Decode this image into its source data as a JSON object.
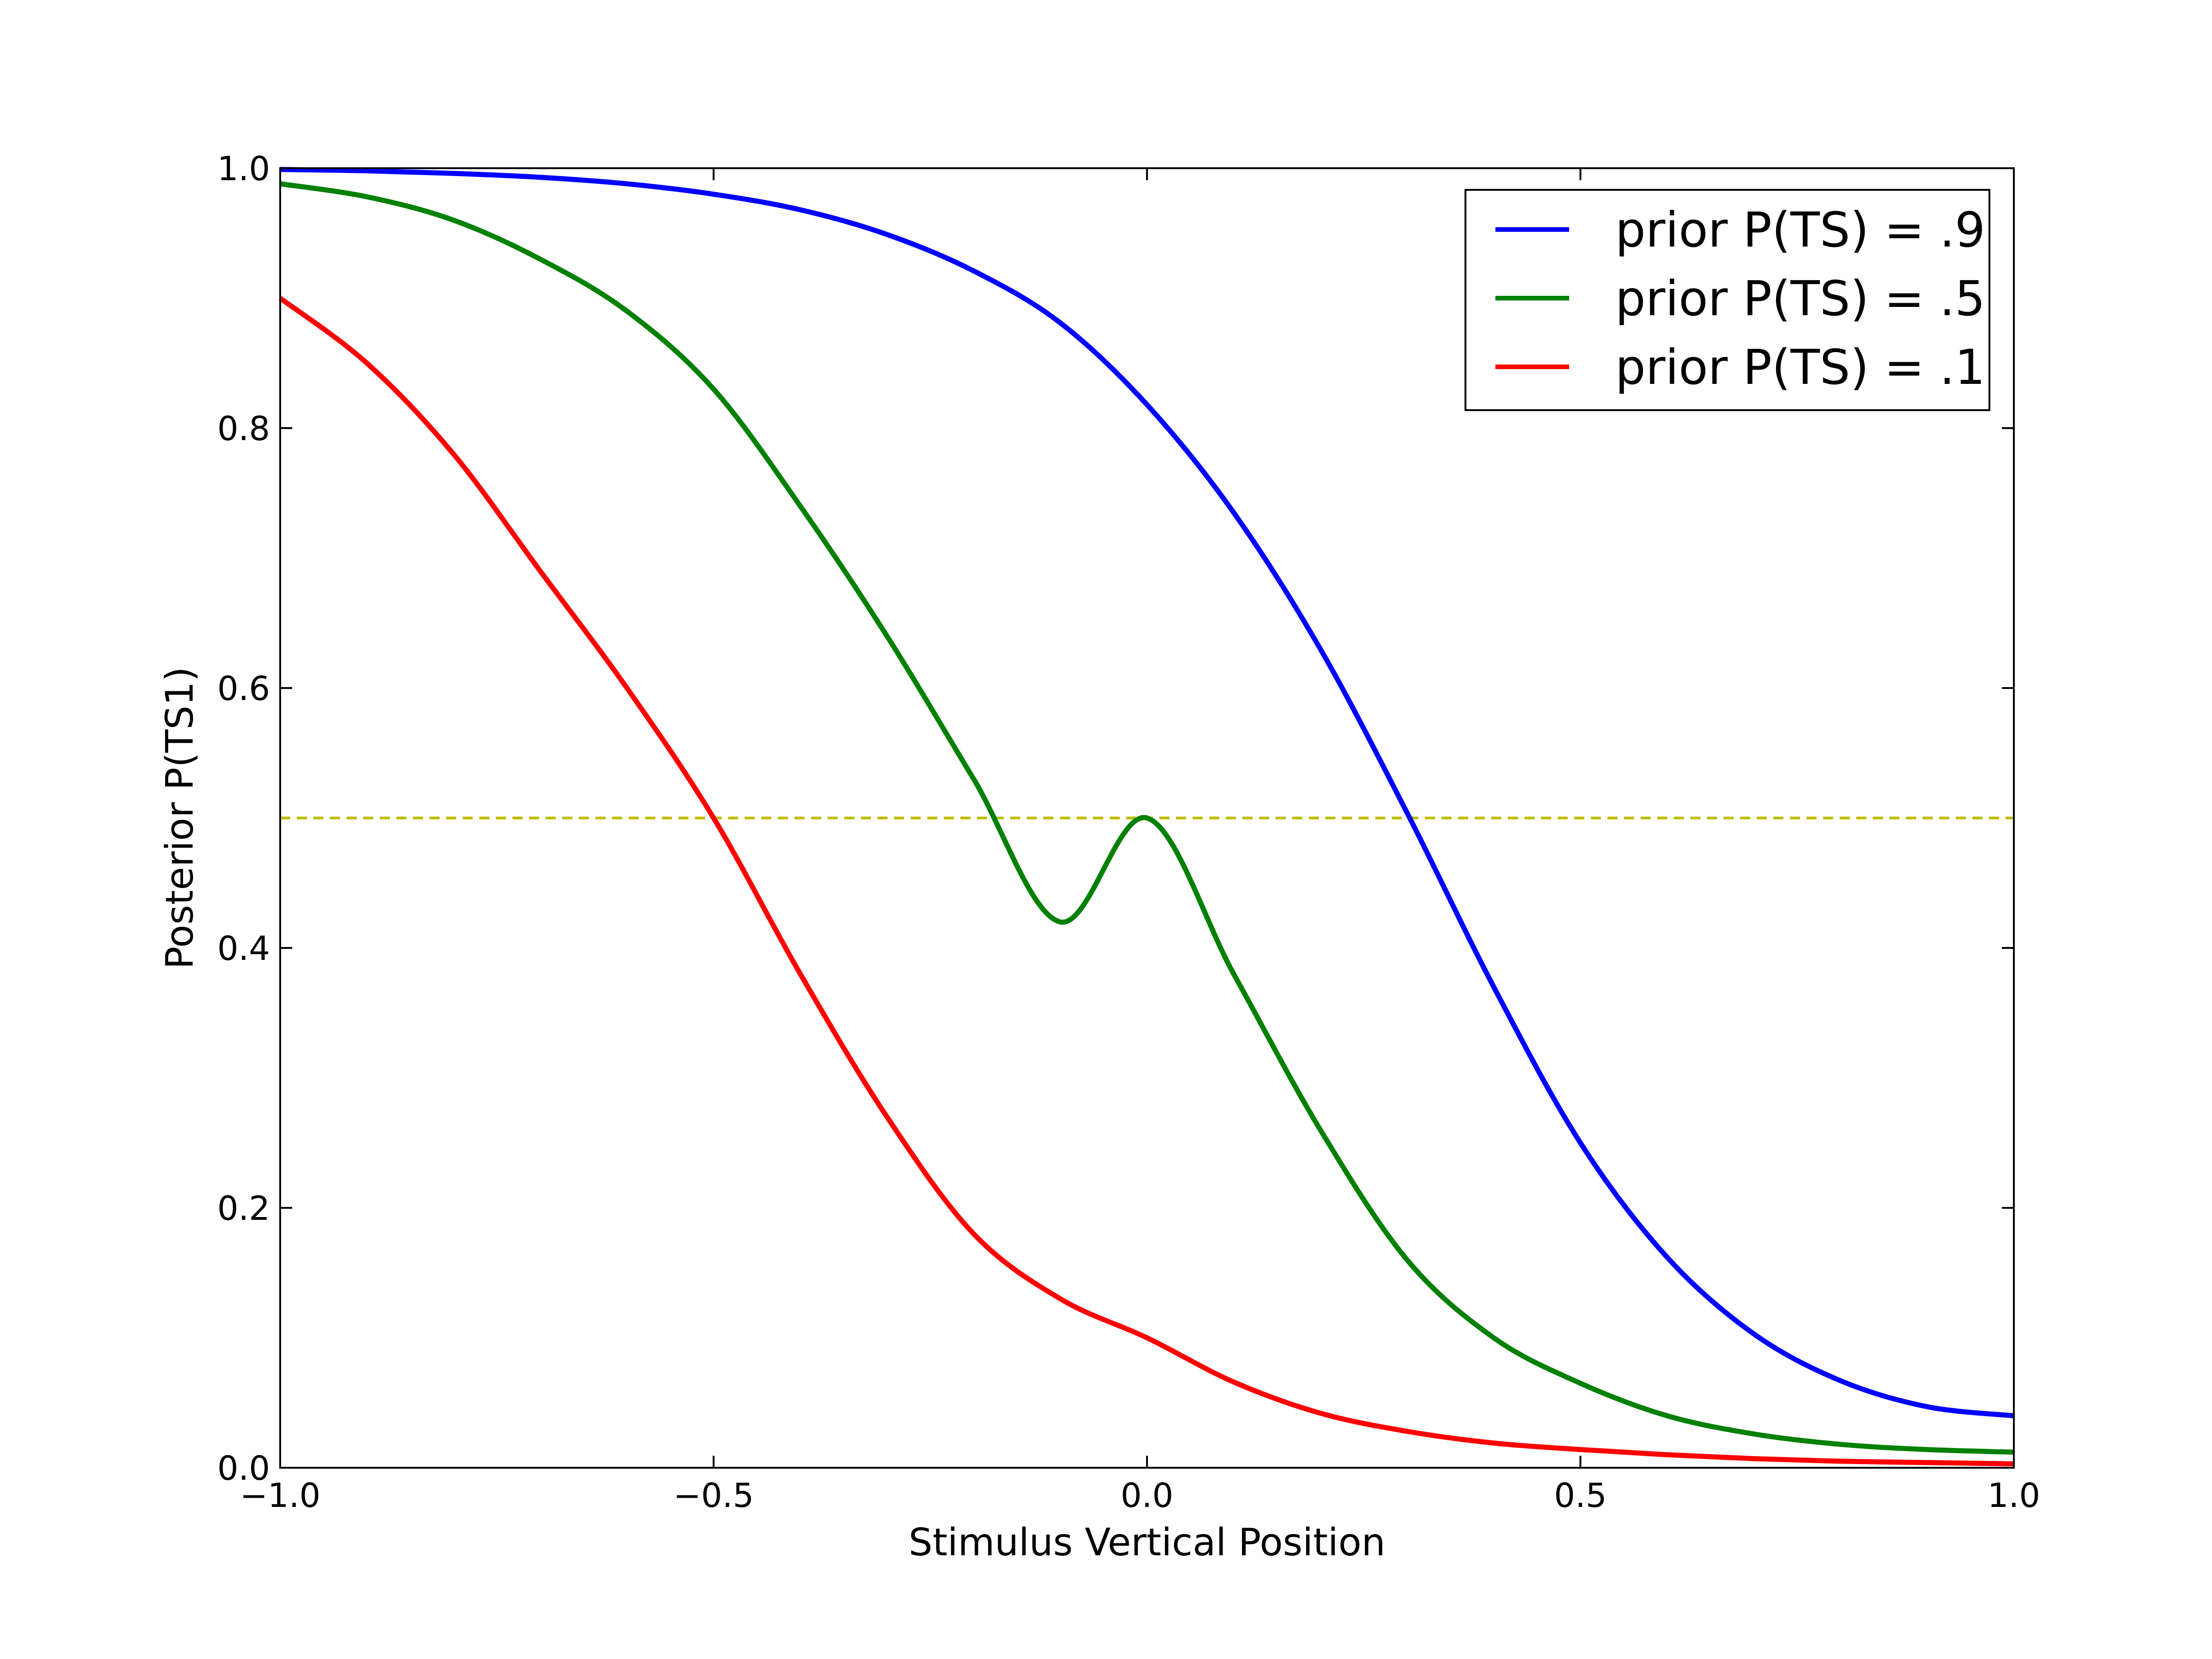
{
  "chart_data": {
    "type": "line",
    "title": "",
    "xlabel": "Stimulus Vertical Position",
    "ylabel": "Posterior P(TS1)",
    "xlim": [
      -1.0,
      1.0
    ],
    "ylim": [
      0.0,
      1.0
    ],
    "xticks": [
      -1.0,
      -0.5,
      0.0,
      0.5,
      1.0
    ],
    "xtick_labels": [
      "−1.0",
      "−0.5",
      "0.0",
      "0.5",
      "1.0"
    ],
    "yticks": [
      0.0,
      0.2,
      0.4,
      0.6,
      0.8,
      1.0
    ],
    "ytick_labels": [
      "0.0",
      "0.2",
      "0.4",
      "0.6",
      "0.8",
      "1.0"
    ],
    "grid": false,
    "legend_position": "top-right",
    "x": [
      -1.0,
      -0.9,
      -0.8,
      -0.7,
      -0.6,
      -0.5,
      -0.4,
      -0.3,
      -0.2,
      -0.1,
      0.0,
      0.1,
      0.2,
      0.3,
      0.4,
      0.5,
      0.6,
      0.7,
      0.8,
      0.9,
      1.0
    ],
    "series": [
      {
        "name": "prior P(TS) = .9",
        "color": "#0000ff",
        "values": [
          0.999,
          0.998,
          0.996,
          0.993,
          0.988,
          0.98,
          0.968,
          0.949,
          0.921,
          0.881,
          0.818,
          0.735,
          0.63,
          0.504,
          0.37,
          0.25,
          0.162,
          0.103,
          0.067,
          0.047,
          0.04
        ]
      },
      {
        "name": "prior P(TS) = .5",
        "color": "#008000",
        "values": [
          0.988,
          0.978,
          0.96,
          0.93,
          0.89,
          0.83,
          0.74,
          0.64,
          0.53,
          0.42,
          0.5,
          0.38,
          0.26,
          0.16,
          0.1,
          0.065,
          0.04,
          0.026,
          0.018,
          0.014,
          0.012
        ]
      },
      {
        "name": "prior P(TS) = .1",
        "color": "#ff0000",
        "values": [
          0.9,
          0.85,
          0.78,
          0.69,
          0.6,
          0.5,
          0.38,
          0.27,
          0.18,
          0.13,
          0.1,
          0.066,
          0.042,
          0.028,
          0.019,
          0.014,
          0.01,
          0.007,
          0.005,
          0.004,
          0.003
        ]
      }
    ],
    "reference_line": {
      "y": 0.5,
      "color": "#bfbf00",
      "style": "dashed"
    }
  }
}
